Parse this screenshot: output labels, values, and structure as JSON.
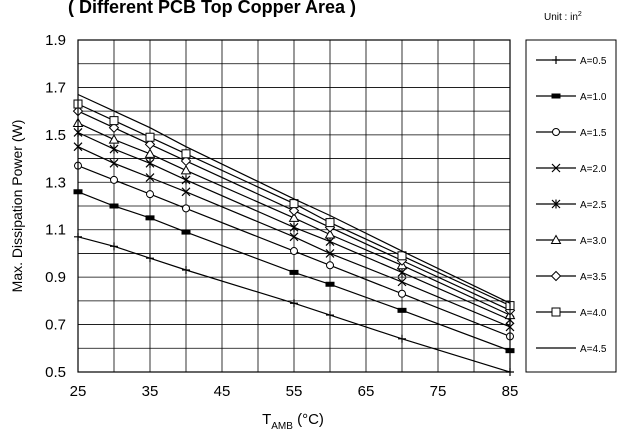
{
  "chart_data": {
    "type": "line",
    "title": "( Different PCB Top Copper Area )",
    "unit_note_prefix": "Unit : in",
    "unit_note_exp": "2",
    "xlabel_main": "T",
    "xlabel_sub": "AMB",
    "xlabel_unit": " (°C)",
    "ylabel": "Max. Dissipation Power (W)",
    "xlim": [
      25,
      85
    ],
    "ylim": [
      0.5,
      1.9
    ],
    "x_ticks": [
      "25",
      "35",
      "45",
      "55",
      "65",
      "75",
      "85"
    ],
    "y_ticks": [
      "0.5",
      "0.7",
      "0.9",
      "1.1",
      "1.3",
      "1.5",
      "1.7",
      "1.9"
    ],
    "grid": true,
    "legend_position": "right",
    "marker_x": [
      25,
      30,
      35,
      40,
      55,
      60,
      70,
      85
    ],
    "series": [
      {
        "name": "A=0.5",
        "marker": "plus",
        "values": [
          1.07,
          1.03,
          0.98,
          0.93,
          0.79,
          0.74,
          0.64,
          0.5
        ]
      },
      {
        "name": "A=1.0",
        "marker": "bar",
        "values": [
          1.26,
          1.2,
          1.15,
          1.09,
          0.92,
          0.87,
          0.76,
          0.59
        ]
      },
      {
        "name": "A=1.5",
        "marker": "circle",
        "values": [
          1.37,
          1.31,
          1.25,
          1.19,
          1.01,
          0.95,
          0.83,
          0.65
        ]
      },
      {
        "name": "A=2.0",
        "marker": "x",
        "values": [
          1.45,
          1.38,
          1.32,
          1.26,
          1.07,
          1.0,
          0.88,
          0.69
        ]
      },
      {
        "name": "A=2.5",
        "marker": "star",
        "values": [
          1.51,
          1.44,
          1.38,
          1.31,
          1.11,
          1.05,
          0.92,
          0.72
        ]
      },
      {
        "name": "A=3.0",
        "marker": "triangle",
        "values": [
          1.55,
          1.48,
          1.42,
          1.35,
          1.15,
          1.08,
          0.95,
          0.74
        ]
      },
      {
        "name": "A=3.5",
        "marker": "diamond",
        "values": [
          1.6,
          1.53,
          1.46,
          1.39,
          1.18,
          1.11,
          0.97,
          0.76
        ]
      },
      {
        "name": "A=4.0",
        "marker": "square",
        "values": [
          1.63,
          1.56,
          1.49,
          1.42,
          1.21,
          1.13,
          0.99,
          0.78
        ]
      },
      {
        "name": "A=4.5",
        "marker": "none",
        "values": [
          1.67,
          1.6,
          1.53,
          1.45,
          1.23,
          1.16,
          1.01,
          0.79
        ]
      }
    ]
  }
}
